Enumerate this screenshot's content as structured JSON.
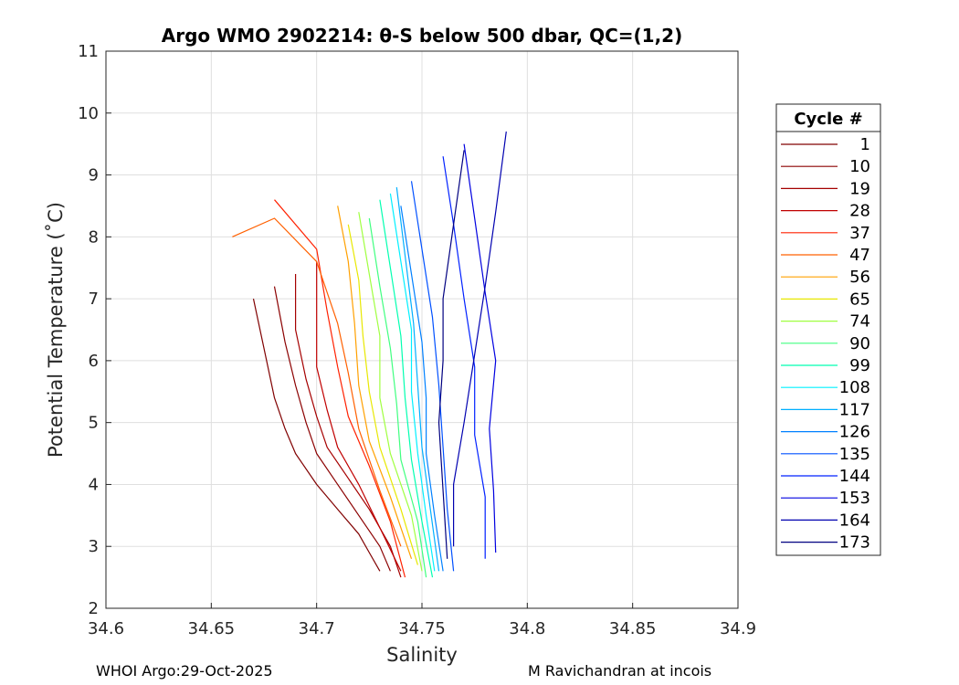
{
  "chart_data": {
    "type": "line",
    "title": "Argo WMO 2902214: θ-S below 500 dbar,  QC=(1,2)",
    "xlabel": "Salinity",
    "ylabel": "Potential Temperature (˚C)",
    "xlim": [
      34.6,
      34.9
    ],
    "ylim": [
      2,
      11
    ],
    "xticks": [
      "34.6",
      "34.65",
      "34.7",
      "34.75",
      "34.8",
      "34.85",
      "34.9"
    ],
    "yticks": [
      "2",
      "3",
      "4",
      "5",
      "6",
      "7",
      "8",
      "9",
      "10",
      "11"
    ],
    "grid": true,
    "legend_position": "outside-right",
    "legend_title": "Cycle #",
    "series": [
      {
        "name": "1",
        "color": "#800000",
        "x": [
          34.67,
          34.675,
          34.68,
          34.685,
          34.69,
          34.7,
          34.71,
          34.72,
          34.725,
          34.73
        ],
        "y": [
          7.0,
          6.2,
          5.4,
          4.9,
          4.5,
          4.0,
          3.6,
          3.2,
          2.9,
          2.6
        ]
      },
      {
        "name": "10",
        "color": "#8b0000",
        "x": [
          34.68,
          34.685,
          34.69,
          34.695,
          34.7,
          34.71,
          34.72,
          34.73,
          34.735
        ],
        "y": [
          7.2,
          6.3,
          5.6,
          5.0,
          4.5,
          4.0,
          3.5,
          3.0,
          2.6
        ]
      },
      {
        "name": "19",
        "color": "#a50000",
        "x": [
          34.69,
          34.69,
          34.695,
          34.7,
          34.705,
          34.715,
          34.725,
          34.735,
          34.74
        ],
        "y": [
          7.4,
          6.5,
          5.7,
          5.1,
          4.6,
          4.1,
          3.6,
          3.0,
          2.5
        ]
      },
      {
        "name": "28",
        "color": "#c00000",
        "x": [
          34.7,
          34.7,
          34.7,
          34.705,
          34.71,
          34.72,
          34.73,
          34.74
        ],
        "y": [
          7.6,
          6.8,
          5.9,
          5.2,
          4.6,
          4.0,
          3.3,
          2.6
        ]
      },
      {
        "name": "37",
        "color": "#ff2000",
        "x": [
          34.68,
          34.7,
          34.705,
          34.71,
          34.715,
          34.725,
          34.735,
          34.742
        ],
        "y": [
          8.6,
          7.8,
          6.8,
          5.9,
          5.1,
          4.3,
          3.4,
          2.5
        ]
      },
      {
        "name": "47",
        "color": "#ff6000",
        "x": [
          34.66,
          34.68,
          34.7,
          34.71,
          34.715,
          34.72,
          34.73,
          34.74
        ],
        "y": [
          8.0,
          8.3,
          7.6,
          6.6,
          5.8,
          4.9,
          3.9,
          3.0
        ]
      },
      {
        "name": "56",
        "color": "#ffa000",
        "x": [
          34.71,
          34.715,
          34.718,
          34.72,
          34.725,
          34.735,
          34.745
        ],
        "y": [
          8.5,
          7.6,
          6.6,
          5.6,
          4.7,
          3.8,
          2.8
        ]
      },
      {
        "name": "65",
        "color": "#e8e800",
        "x": [
          34.715,
          34.72,
          34.722,
          34.725,
          34.73,
          34.74,
          34.748
        ],
        "y": [
          8.2,
          7.3,
          6.4,
          5.5,
          4.6,
          3.6,
          2.7
        ]
      },
      {
        "name": "74",
        "color": "#a0ff40",
        "x": [
          34.72,
          34.725,
          34.73,
          34.73,
          34.735,
          34.745,
          34.75
        ],
        "y": [
          8.4,
          7.4,
          6.4,
          5.4,
          4.5,
          3.5,
          2.6
        ]
      },
      {
        "name": "90",
        "color": "#40ff80",
        "x": [
          34.725,
          34.73,
          34.735,
          34.738,
          34.74,
          34.748,
          34.752
        ],
        "y": [
          8.3,
          7.2,
          6.2,
          5.3,
          4.4,
          3.4,
          2.5
        ]
      },
      {
        "name": "99",
        "color": "#00ffb0",
        "x": [
          34.73,
          34.735,
          34.74,
          34.742,
          34.745,
          34.75,
          34.755
        ],
        "y": [
          8.6,
          7.5,
          6.4,
          5.4,
          4.4,
          3.4,
          2.5
        ]
      },
      {
        "name": "108",
        "color": "#00f0ff",
        "x": [
          34.735,
          34.74,
          34.745,
          34.745,
          34.748,
          34.752,
          34.756
        ],
        "y": [
          8.7,
          7.6,
          6.5,
          5.5,
          4.5,
          3.5,
          2.6
        ]
      },
      {
        "name": "117",
        "color": "#00b0ff",
        "x": [
          34.738,
          34.742,
          34.746,
          34.748,
          34.75,
          34.754,
          34.758
        ],
        "y": [
          8.8,
          7.7,
          6.6,
          5.6,
          4.6,
          3.6,
          2.6
        ]
      },
      {
        "name": "126",
        "color": "#0080ff",
        "x": [
          34.74,
          34.745,
          34.75,
          34.752,
          34.752,
          34.756,
          34.76
        ],
        "y": [
          8.5,
          7.4,
          6.3,
          5.4,
          4.5,
          3.5,
          2.6
        ]
      },
      {
        "name": "135",
        "color": "#0050ff",
        "x": [
          34.745,
          34.75,
          34.755,
          34.758,
          34.76,
          34.762,
          34.765
        ],
        "y": [
          8.9,
          7.8,
          6.7,
          5.6,
          4.6,
          3.6,
          2.6
        ]
      },
      {
        "name": "144",
        "color": "#0020ff",
        "x": [
          34.76,
          34.765,
          34.77,
          34.775,
          34.775,
          34.78,
          34.78
        ],
        "y": [
          9.3,
          8.2,
          7.0,
          5.9,
          4.8,
          3.8,
          2.8
        ]
      },
      {
        "name": "153",
        "color": "#0000e0",
        "x": [
          34.77,
          34.775,
          34.78,
          34.785,
          34.782,
          34.784,
          34.785
        ],
        "y": [
          9.5,
          8.3,
          7.1,
          6.0,
          4.9,
          3.9,
          2.9
        ]
      },
      {
        "name": "164",
        "color": "#0000b0",
        "x": [
          34.79,
          34.785,
          34.78,
          34.775,
          34.77,
          34.765,
          34.765
        ],
        "y": [
          9.7,
          8.4,
          7.2,
          6.1,
          5.0,
          4.0,
          3.0
        ]
      },
      {
        "name": "173",
        "color": "#000080",
        "x": [
          34.77,
          34.765,
          34.76,
          34.76,
          34.758,
          34.76,
          34.762
        ],
        "y": [
          9.4,
          8.2,
          7.0,
          6.0,
          5.0,
          3.9,
          2.8
        ]
      }
    ]
  },
  "footer": {
    "left": "WHOI Argo:29-Oct-2025",
    "right": "M Ravichandran at incois"
  }
}
